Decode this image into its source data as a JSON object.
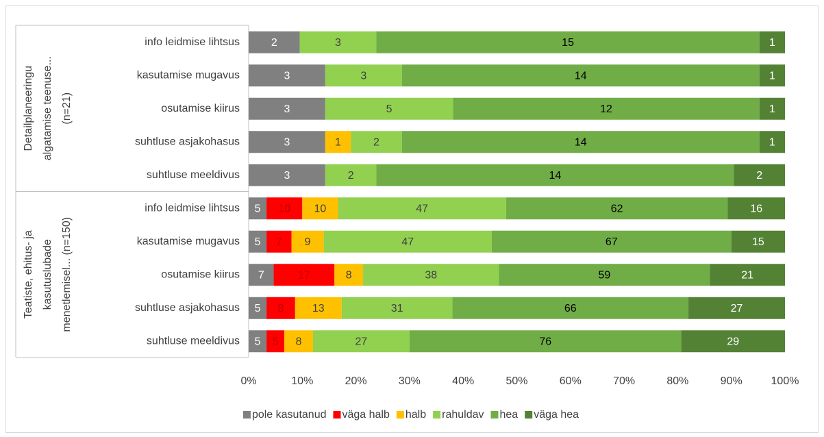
{
  "chart_data": {
    "type": "bar",
    "orientation": "horizontal",
    "stacked": "percent",
    "groups": [
      {
        "label": [
          "Detailplaneeringu",
          "algatamise teenuse...",
          "(n=21)"
        ],
        "categories": [
          "info leidmise lihtsus",
          "kasutamise mugavus",
          "osutamise kiirus",
          "suhtluse asjakohasus",
          "suhtluse meeldivus"
        ]
      },
      {
        "label": [
          "Teatiste, ehitus- ja",
          "kasutuslubade",
          "menetlemisel... (n=150)"
        ],
        "categories": [
          "info leidmise lihtsus",
          "kasutamise mugavus",
          "osutamise kiirus",
          "suhtluse asjakohasus",
          "suhtluse meeldivus"
        ]
      }
    ],
    "series": [
      {
        "name": "pole kasutanud",
        "color": "#808080",
        "label_color": "#ffffff",
        "values": [
          2,
          3,
          3,
          3,
          3,
          5,
          5,
          7,
          5,
          5
        ]
      },
      {
        "name": "väga halb",
        "color": "#ff0000",
        "label_color": "#c00000",
        "values": [
          null,
          null,
          null,
          null,
          null,
          10,
          7,
          17,
          8,
          5
        ]
      },
      {
        "name": "halb",
        "color": "#ffc000",
        "label_color": "#404040",
        "values": [
          null,
          null,
          null,
          1,
          null,
          10,
          9,
          8,
          13,
          8
        ]
      },
      {
        "name": "rahuldav",
        "color": "#92d050",
        "label_color": "#404040",
        "values": [
          3,
          3,
          5,
          2,
          2,
          47,
          47,
          38,
          31,
          27
        ]
      },
      {
        "name": "hea",
        "color": "#70ad47",
        "label_color": "#000000",
        "values": [
          15,
          14,
          12,
          14,
          14,
          62,
          67,
          59,
          66,
          76
        ]
      },
      {
        "name": "väga hea",
        "color": "#548235",
        "label_color": "#ffffff",
        "values": [
          1,
          1,
          1,
          1,
          2,
          16,
          15,
          21,
          27,
          29
        ]
      }
    ],
    "xlim": [
      0,
      100
    ],
    "xticks": [
      {
        "value": 0,
        "label": "0%"
      },
      {
        "value": 10,
        "label": "10%"
      },
      {
        "value": 20,
        "label": "20%"
      },
      {
        "value": 30,
        "label": "30%"
      },
      {
        "value": 40,
        "label": "40%"
      },
      {
        "value": 50,
        "label": "50%"
      },
      {
        "value": 60,
        "label": "60%"
      },
      {
        "value": 70,
        "label": "70%"
      },
      {
        "value": 80,
        "label": "80%"
      },
      {
        "value": 90,
        "label": "90%"
      },
      {
        "value": 100,
        "label": "100%"
      }
    ],
    "legend": "bottom"
  }
}
